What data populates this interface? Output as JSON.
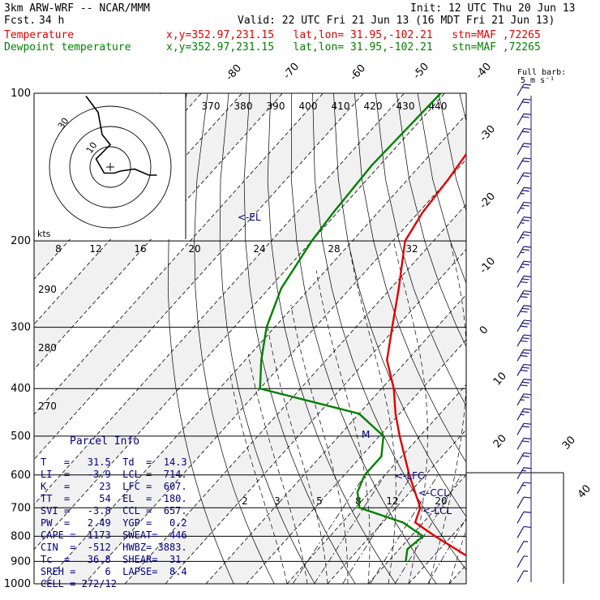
{
  "header": {
    "model": "3km ARW-WRF -- NCAR/MMM",
    "init": "Init: 12 UTC Thu 20 Jun 13",
    "fcst_label": "Fcst.",
    "fcst_value": "34 h",
    "valid": "Valid: 22 UTC Fri 21 Jun 13 (16 MDT Fri 21 Jun 13)",
    "temp_label": "Temperature",
    "temp_info": "x,y=352.97,231.15   lat,lon= 31.95,-102.21   stn=MAF ,72265",
    "dew_label": "Dewpoint temperature",
    "dew_info": "x,y=352.97,231.15   lat,lon= 31.95,-102.21   stn=MAF ,72265",
    "full_barb": "Full barb:",
    "full_barb_units": "5 m s⁻¹"
  },
  "chart_data": {
    "type": "line",
    "pressure_levels": [
      100,
      200,
      300,
      400,
      500,
      600,
      700,
      800,
      900,
      1000
    ],
    "isotherm_labels": [
      "-80",
      "-70",
      "-60",
      "-50",
      "-40",
      "-30",
      "-20",
      "-10",
      "0",
      "10",
      "20",
      "30",
      "40"
    ],
    "theta_labels": [
      "370",
      "380",
      "390",
      "400",
      "410",
      "420",
      "430",
      "440"
    ],
    "mixing_ratio_labels_upper": [
      "8",
      "12",
      "16",
      "20",
      "24",
      "28",
      "32"
    ],
    "mixing_ratio_labels_lower": [
      "2",
      "3",
      "5",
      "8",
      "12",
      "20"
    ],
    "thetae_labels": [
      "290",
      "280",
      "270"
    ],
    "annotations": {
      "el": "<-EL",
      "lfc": "<-LFC",
      "ccl": "<-CCL",
      "lcl": "<-LCL",
      "kts": "kts",
      "m": "M"
    },
    "series": [
      {
        "name": "Temperature",
        "color": "#e00000",
        "points": [
          [
            100,
            -64
          ],
          [
            150,
            -60
          ],
          [
            175,
            -59
          ],
          [
            200,
            -57
          ],
          [
            250,
            -48
          ],
          [
            300,
            -41
          ],
          [
            350,
            -35
          ],
          [
            400,
            -27
          ],
          [
            450,
            -21
          ],
          [
            500,
            -15
          ],
          [
            600,
            -4
          ],
          [
            700,
            6
          ],
          [
            750,
            8
          ],
          [
            800,
            16
          ],
          [
            900,
            31.5
          ]
        ]
      },
      {
        "name": "Dewpoint temperature",
        "color": "#008000",
        "points": [
          [
            100,
            -81
          ],
          [
            140,
            -82
          ],
          [
            175,
            -81
          ],
          [
            200,
            -80
          ],
          [
            250,
            -77
          ],
          [
            300,
            -72
          ],
          [
            350,
            -66
          ],
          [
            400,
            -60
          ],
          [
            450,
            -30
          ],
          [
            500,
            -19
          ],
          [
            550,
            -15
          ],
          [
            600,
            -15
          ],
          [
            650,
            -13
          ],
          [
            700,
            -9
          ],
          [
            750,
            5
          ],
          [
            800,
            13
          ],
          [
            850,
            12
          ],
          [
            900,
            14.3
          ]
        ]
      }
    ],
    "hodograph": {
      "rings": [
        10,
        20,
        30
      ],
      "ring_labels": [
        "10",
        "30"
      ],
      "trace": [
        [
          -12,
          35
        ],
        [
          -6,
          27
        ],
        [
          -4,
          16
        ],
        [
          0,
          11
        ],
        [
          -7,
          4
        ],
        [
          -3,
          -3
        ],
        [
          2,
          -3
        ],
        [
          5,
          -2
        ],
        [
          12,
          -1
        ],
        [
          19,
          -4
        ],
        [
          23,
          -4
        ]
      ]
    },
    "wind_barbs_kt": [
      20,
      20,
      22,
      22,
      24,
      24,
      24,
      26,
      26,
      26,
      28,
      28,
      28,
      30,
      30,
      30,
      32,
      32,
      32,
      30,
      30,
      28,
      26,
      24,
      22,
      20,
      18,
      16,
      14,
      12,
      10,
      8,
      6,
      5
    ]
  },
  "parcel_info": {
    "title": "Parcel Info",
    "rows": [
      "T   =   31.5  Td  =  14.3",
      "LI  =   -3.9  LCL =  714.",
      "K   =     23  LFC =  607.",
      "TT  =     54  EL  =  180.",
      "SVI =   -3.8  CCL =  657.",
      "PW  =   2.49  YGP =   0.2",
      "CAPE =  1173  SWEAT=  446",
      "CIN  =  -512  HWBZ= 3883.",
      "Tc  =   36.8  SHEAR=  31.",
      "SREH =     6  LAPSE=  8.4",
      "CELL = 272/12"
    ]
  }
}
